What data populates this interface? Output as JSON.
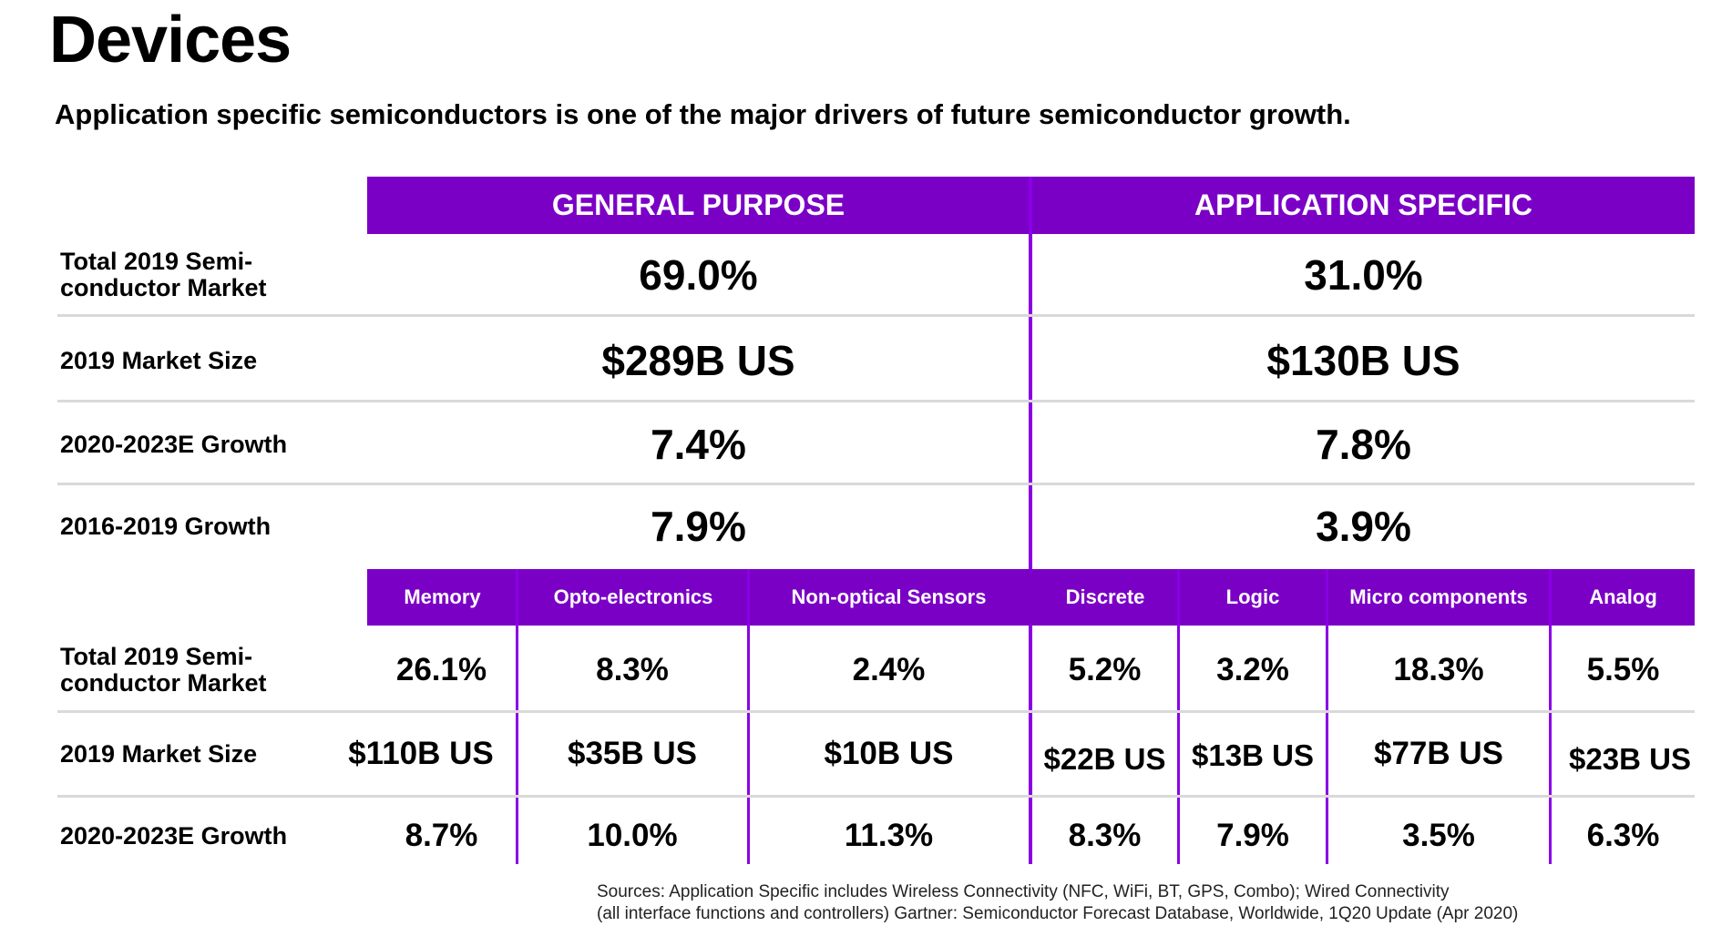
{
  "title": "Devices",
  "subtitle": "Application specific semiconductors is one of the major drivers of future semiconductor growth.",
  "categories": {
    "general": "GENERAL PURPOSE",
    "application": "APPLICATION SPECIFIC"
  },
  "top_rows": [
    {
      "label": "Total 2019 Semi-\nconductor Market",
      "general": "69.0%",
      "application": "31.0%"
    },
    {
      "label": "2019 Market Size",
      "general": "$289B US",
      "application": "$130B US"
    },
    {
      "label": "2020-2023E Growth",
      "general": "7.4%",
      "application": "7.8%"
    },
    {
      "label": "2016-2019 Growth",
      "general": "7.9%",
      "application": "3.9%"
    }
  ],
  "segments": [
    "Memory",
    "Opto-electronics",
    "Non-optical Sensors",
    "Discrete",
    "Logic",
    "Micro components",
    "Analog"
  ],
  "bottom_rows": [
    {
      "label": "Total 2019 Semi-\nconductor Market",
      "values": [
        "26.1%",
        "8.3%",
        "2.4%",
        "5.2%",
        "3.2%",
        "18.3%",
        "5.5%"
      ]
    },
    {
      "label": "2019 Market Size",
      "values": [
        "$110B US",
        "$35B US",
        "$10B US",
        "$22B US",
        "$13B US",
        "$77B US",
        "$23B US"
      ]
    },
    {
      "label": "2020-2023E Growth",
      "values": [
        "8.7%",
        "10.0%",
        "11.3%",
        "8.3%",
        "7.9%",
        "3.5%",
        "6.3%"
      ]
    }
  ],
  "sources": {
    "line1": "Sources:  Application Specific includes Wireless Connectivity (NFC, WiFi, BT, GPS, Combo); Wired Connectivity",
    "line2": "(all interface functions and controllers) Gartner: Semiconductor Forecast Database, Worldwide, 1Q20 Update (Apr 2020)"
  },
  "colors": {
    "accent": "#7b00c6",
    "divider": "#8a00e6",
    "rule": "#d9d9d9"
  }
}
